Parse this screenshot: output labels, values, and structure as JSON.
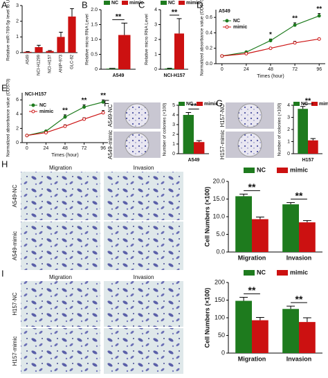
{
  "chart_data": [
    {
      "type": "bar",
      "panel": "A",
      "y_label": "Relative miR-769-5p level to U6",
      "categories": [
        "A549",
        "NCI-H1299",
        "NCI-H157",
        "ANIP-973",
        "GLC-82"
      ],
      "values": [
        0.05,
        0.35,
        0.1,
        1.0,
        2.3
      ],
      "errors": [
        0.02,
        0.12,
        0.03,
        0.3,
        0.5
      ],
      "color": "#cc1111",
      "ylim": [
        0,
        3
      ],
      "yticks": [
        0,
        1,
        2,
        3
      ]
    },
    {
      "type": "bar",
      "panel": "B",
      "y_label": "Relative micro RNA Level",
      "categories": [
        "A549"
      ],
      "series": [
        {
          "name": "NC",
          "color": "#1e7b1e",
          "values": [
            0.02
          ],
          "errors": [
            0.01
          ]
        },
        {
          "name": "mimic",
          "color": "#cc1111",
          "values": [
            1.15
          ],
          "errors": [
            0.4
          ]
        }
      ],
      "significance": [
        "**"
      ],
      "ylim": [
        0,
        2
      ],
      "yticks": [
        0,
        0.5,
        {
          "value": 1,
          "label": "1.0"
        },
        1.5,
        {
          "value": 2,
          "label": "2.0"
        }
      ]
    },
    {
      "type": "bar",
      "panel": "C",
      "y_label": "Relative micro RNA Level",
      "categories": [
        "NCI-H157"
      ],
      "series": [
        {
          "name": "NC",
          "color": "#1e7b1e",
          "values": [
            0.05
          ],
          "errors": [
            0.02
          ]
        },
        {
          "name": "mimic",
          "color": "#cc1111",
          "values": [
            2.4
          ],
          "errors": [
            1.0
          ]
        }
      ],
      "significance": [
        "**"
      ],
      "ylim": [
        0,
        4
      ],
      "yticks": [
        0,
        1,
        2,
        3,
        4
      ]
    },
    {
      "type": "line",
      "panel": "D",
      "title": "A549",
      "x_label": "Times (hour)",
      "y_label": "Normalized absorbance value (OD570)",
      "x": [
        0,
        24,
        48,
        72,
        96
      ],
      "xlim": [
        -6,
        102
      ],
      "xticks": [
        0,
        24,
        48,
        72,
        96
      ],
      "series": [
        {
          "name": "NC",
          "color": "#1e7b1e",
          "values": [
            0.1,
            0.15,
            0.3,
            0.5,
            0.62
          ],
          "errors": [
            0.01,
            0.01,
            0.02,
            0.03,
            0.03
          ]
        },
        {
          "name": "mimic",
          "color": "#cc1111",
          "values": [
            0.1,
            0.13,
            0.2,
            0.27,
            0.32
          ],
          "errors": [
            0.01,
            0.01,
            0.01,
            0.02,
            0.01
          ]
        }
      ],
      "significance": [
        null,
        null,
        "*",
        "**",
        "**"
      ],
      "ylim": [
        0,
        0.7
      ],
      "yticks": [
        {
          "value": 0,
          "label": "0.0"
        },
        0.2,
        0.4,
        0.6
      ]
    },
    {
      "type": "line",
      "panel": "E",
      "title": "NCI-H157",
      "x_label": "Times (hour)",
      "y_label": "Normalized absorbance value (OD570)",
      "x": [
        0,
        24,
        48,
        72,
        96
      ],
      "xlim": [
        -6,
        102
      ],
      "xticks": [
        0,
        24,
        48,
        72,
        96
      ],
      "series": [
        {
          "name": "NC",
          "color": "#1e7b1e",
          "values": [
            1,
            1.6,
            3.6,
            5,
            5.7
          ],
          "errors": [
            0.05,
            0.1,
            0.3,
            0.3,
            0.3
          ]
        },
        {
          "name": "mimic",
          "color": "#cc1111",
          "values": [
            1,
            1.4,
            2.3,
            3.3,
            4.2
          ],
          "errors": [
            0.05,
            0.1,
            0.2,
            0.2,
            0.3
          ]
        }
      ],
      "significance": [
        null,
        null,
        "**",
        "**",
        "**"
      ],
      "ylim": [
        0,
        7
      ],
      "yticks": [
        0,
        2,
        4,
        6
      ]
    },
    {
      "type": "bar",
      "panel": "F",
      "image_labels": [
        "A549-NC",
        "A549-mimic"
      ],
      "y_label": "Number of colonies (×100)",
      "categories": [
        "A549"
      ],
      "series": [
        {
          "name": "NC",
          "color": "#1e7b1e",
          "values": [
            4.0
          ],
          "errors": [
            0.25
          ]
        },
        {
          "name": "mimic",
          "color": "#cc1111",
          "values": [
            1.2
          ],
          "errors": [
            0.15
          ]
        }
      ],
      "significance": [
        "**"
      ],
      "ylim": [
        0,
        5
      ],
      "yticks": [
        0,
        1,
        2,
        3,
        4,
        5
      ]
    },
    {
      "type": "bar",
      "panel": "G",
      "image_labels": [
        "H157-NC",
        "H157-mimic"
      ],
      "y_label": "Number of colonies (×100)",
      "categories": [
        "H157"
      ],
      "series": [
        {
          "name": "NC",
          "color": "#1e7b1e",
          "values": [
            3.7
          ],
          "errors": [
            0.2
          ]
        },
        {
          "name": "mimic",
          "color": "#cc1111",
          "values": [
            1.1
          ],
          "errors": [
            0.15
          ]
        }
      ],
      "significance": [
        "**"
      ],
      "ylim": [
        0,
        4
      ],
      "yticks": [
        0,
        1,
        2,
        3,
        4
      ]
    },
    {
      "type": "bar",
      "panel": "H",
      "image_columns": [
        "Migration",
        "Invasion"
      ],
      "image_rows": [
        "A549-NC",
        "A549-mimic"
      ],
      "y_label": "Cell Numbers (×100)",
      "categories": [
        "Migration",
        "Invasion"
      ],
      "series": [
        {
          "name": "NC",
          "color": "#1e7b1e",
          "values": [
            15.8,
            13.5
          ],
          "errors": [
            0.6,
            0.5
          ]
        },
        {
          "name": "mimic",
          "color": "#cc1111",
          "values": [
            9.3,
            8.4
          ],
          "errors": [
            0.6,
            0.5
          ]
        }
      ],
      "significance": [
        "**",
        "**"
      ],
      "ylim": [
        0,
        20
      ],
      "yticks": [
        {
          "value": 0,
          "label": "0.0"
        },
        {
          "value": 5,
          "label": "5.0"
        },
        {
          "value": 10,
          "label": "10.0"
        },
        {
          "value": 15,
          "label": "15.0"
        },
        {
          "value": 20,
          "label": "20.0"
        }
      ]
    },
    {
      "type": "bar",
      "panel": "I",
      "image_columns": [
        "Migration",
        "Invasion"
      ],
      "image_rows": [
        "H157-NC",
        "H157-mimic"
      ],
      "y_label": "Cell Numbers (×100)",
      "categories": [
        "Migration",
        "Invasion"
      ],
      "series": [
        {
          "name": "NC",
          "color": "#1e7b1e",
          "values": [
            148,
            125
          ],
          "errors": [
            10,
            8
          ]
        },
        {
          "name": "mimic",
          "color": "#cc1111",
          "values": [
            93,
            88
          ],
          "errors": [
            8,
            12
          ]
        }
      ],
      "significance": [
        "**",
        "**"
      ],
      "ylim": [
        0,
        200
      ],
      "yticks": [
        0,
        50,
        100,
        150,
        200
      ]
    }
  ]
}
